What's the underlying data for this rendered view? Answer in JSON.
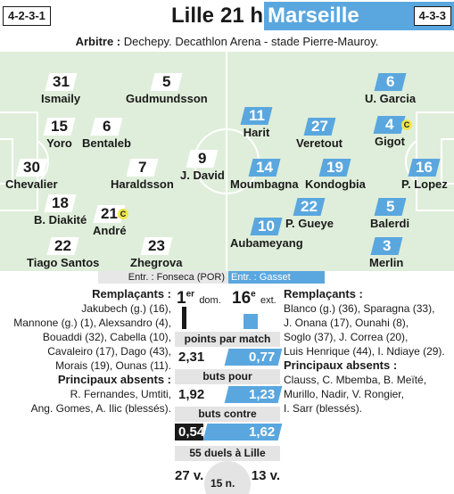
{
  "header": {
    "home_formation": "4-2-3-1",
    "home_team": "Lille",
    "kickoff": "21 h",
    "away_team": "Marseille",
    "away_formation": "4-3-3"
  },
  "referee": {
    "label": "Arbitre :",
    "text": "Dechepy. Decathlon Arena - stade Pierre-Mauroy."
  },
  "home_players": [
    {
      "num": "31",
      "name": "Ismaily"
    },
    {
      "num": "5",
      "name": "Gudmundsson"
    },
    {
      "num": "15",
      "name": "Yoro"
    },
    {
      "num": "6",
      "name": "Bentaleb"
    },
    {
      "num": "30",
      "name": "Chevalier"
    },
    {
      "num": "7",
      "name": "Haraldsson"
    },
    {
      "num": "9",
      "name": "J. David"
    },
    {
      "num": "18",
      "name": "B. Diakité"
    },
    {
      "num": "21",
      "name": "André",
      "card": "C"
    },
    {
      "num": "22",
      "name": "Tiago Santos"
    },
    {
      "num": "23",
      "name": "Zhegrova"
    }
  ],
  "away_players": [
    {
      "num": "6",
      "name": "U. Garcia"
    },
    {
      "num": "11",
      "name": "Harit"
    },
    {
      "num": "27",
      "name": "Veretout"
    },
    {
      "num": "4",
      "name": "Gigot",
      "card": "C"
    },
    {
      "num": "14",
      "name": "Moumbagna"
    },
    {
      "num": "19",
      "name": "Kondogbia"
    },
    {
      "num": "16",
      "name": "P. Lopez"
    },
    {
      "num": "22",
      "name": "P. Gueye"
    },
    {
      "num": "5",
      "name": "Balerdi"
    },
    {
      "num": "10",
      "name": "Aubameyang"
    },
    {
      "num": "3",
      "name": "Merlin"
    }
  ],
  "coaches": {
    "home": "Entr. : Fonseca (POR)",
    "away": "Entr. : Gasset"
  },
  "subs_home": {
    "title": "Remplaçants :",
    "lines": [
      "Jakubech (g.) (16),",
      "Mannone (g.) (1), Alexsandro (4),",
      "Bouaddi (32), Cabella (10),",
      "Cavaleiro (17), Dago (43),",
      "Morais (19), Ounas (11)."
    ],
    "absent_title": "Principaux absents :",
    "absent_lines": [
      "R. Fernandes, Umtiti,",
      "Ang. Gomes, A. Ilic (blessés)."
    ]
  },
  "subs_away": {
    "title": "Remplaçants :",
    "lines": [
      "Blanco (g.) (36), Sparagna (33),",
      "J. Onana (17), Ounahi (8),",
      "Soglo (37), J. Correa (20),",
      "Luis Henrique (44), I. Ndiaye (29)."
    ],
    "absent_title": "Principaux absents :",
    "absent_lines": [
      "Clauss, C. Mbemba, B. Meïté,",
      "Murillo, Nadir, V. Rongier,",
      "I. Sarr (blessés)."
    ]
  },
  "ranking": {
    "home_rank": "1",
    "home_suffix": "er",
    "home_note": "dom.",
    "away_rank": "16",
    "away_suffix": "e",
    "away_note": "ext."
  },
  "stats": [
    {
      "title": "points par match",
      "home": "2,31",
      "away": "0,77"
    },
    {
      "title": "buts pour",
      "home": "1,92",
      "away": "1,23"
    },
    {
      "title": "buts contre",
      "home": "0,54",
      "away": "1,62"
    }
  ],
  "duels": {
    "title": "55 duels à Lille",
    "home": "27 v.",
    "draws": "15 n.",
    "away": "13 v."
  },
  "colors": {
    "home_accent": "#1a1a1a",
    "away_accent": "#5aa7df",
    "pitch": "#dfeeda",
    "captain_badge": "#f0e64c"
  }
}
